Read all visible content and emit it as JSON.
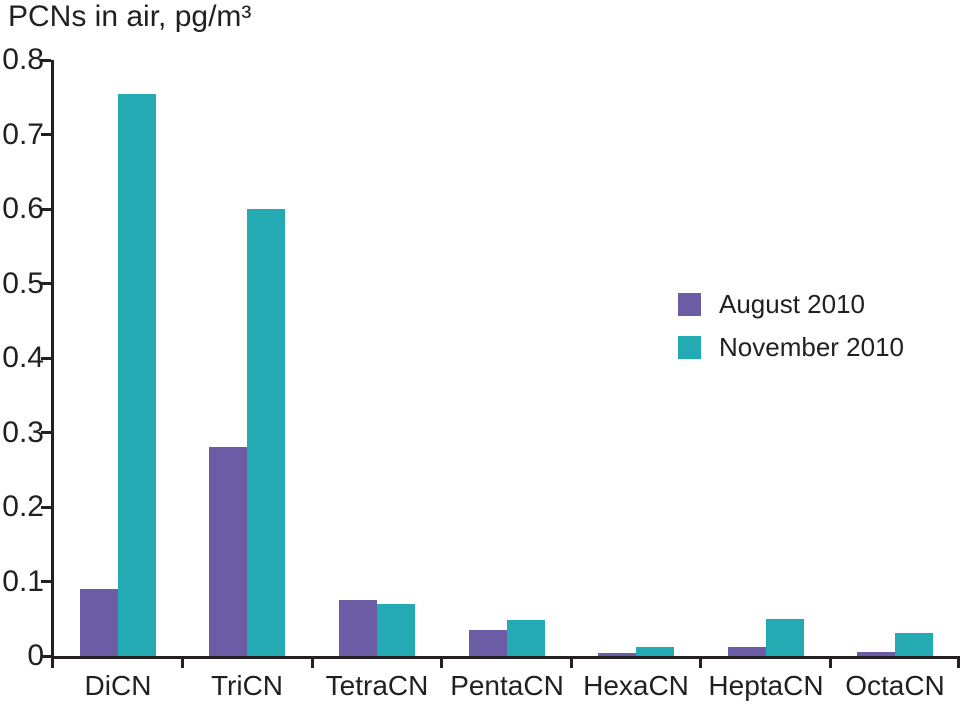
{
  "chart_data": {
    "type": "bar",
    "title": "PCNs in air, pg/m³",
    "xlabel": "",
    "ylabel": "",
    "categories": [
      "DiCN",
      "TriCN",
      "TetraCN",
      "PentaCN",
      "HexaCN",
      "HeptaCN",
      "OctaCN"
    ],
    "series": [
      {
        "name": "August 2010",
        "color": "#6b5ca5",
        "values": [
          0.09,
          0.28,
          0.075,
          0.035,
          0.004,
          0.012,
          0.006
        ]
      },
      {
        "name": "November 2010",
        "color": "#23aab2",
        "values": [
          0.755,
          0.6,
          0.07,
          0.048,
          0.012,
          0.05,
          0.031
        ]
      }
    ],
    "ylim": [
      0,
      0.8
    ],
    "yticks": [
      0,
      0.1,
      0.2,
      0.3,
      0.4,
      0.5,
      0.6,
      0.7,
      0.8
    ],
    "ytick_labels": [
      "0",
      "0.1",
      "0.2",
      "0.3",
      "0.4",
      "0.5",
      "0.6",
      "0.7",
      "0.8"
    ],
    "grid": false,
    "legend_position": "middle-right",
    "axis_color": "#231f20",
    "text_color": "#231f20"
  }
}
